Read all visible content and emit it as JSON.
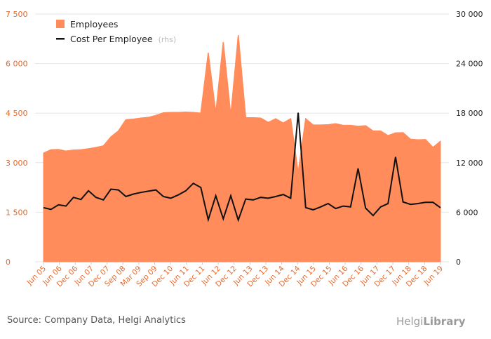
{
  "chart_data": {
    "type": "area",
    "x_labels": [
      "Jun 05",
      "Jun 06",
      "Dec 06",
      "Jun 07",
      "Dec 07",
      "Sep 08",
      "Mar 09",
      "Sep 09",
      "Dec 10",
      "Jun 11",
      "Dec 11",
      "Jun 12",
      "Dec 12",
      "Jun 13",
      "Dec 13",
      "Jun 14",
      "Dec 14",
      "Jun 15",
      "Dec 15",
      "Jun 16",
      "Dec 16",
      "Jun 17",
      "Dec 17",
      "Jun 18",
      "Dec 18",
      "Jun 19"
    ],
    "left_axis": {
      "ticks": [
        "0",
        "1 500",
        "3 000",
        "4 500",
        "6 000",
        "7 500"
      ],
      "min": 0,
      "max": 7500
    },
    "right_axis": {
      "ticks": [
        "0",
        "6 000",
        "12 000",
        "18 000",
        "24 000",
        "30 000"
      ],
      "min": 0,
      "max": 30000
    },
    "series": [
      {
        "name": "Employees",
        "type": "area",
        "axis": "left",
        "color": "#ff8c5a",
        "values": [
          3290,
          3390,
          3400,
          3350,
          3380,
          3390,
          3420,
          3460,
          3510,
          3780,
          3960,
          4300,
          4320,
          4350,
          4370,
          4430,
          4510,
          4520,
          4520,
          4530,
          4520,
          4500,
          6330,
          4500,
          6650,
          4430,
          6860,
          4360,
          4360,
          4350,
          4220,
          4330,
          4200,
          4330,
          2700,
          4330,
          4140,
          4140,
          4150,
          4180,
          4130,
          4130,
          4100,
          4120,
          3960,
          3960,
          3820,
          3900,
          3910,
          3710,
          3690,
          3700,
          3460,
          3650
        ]
      },
      {
        "name": "Cost Per Employee",
        "note": "(rhs)",
        "type": "line",
        "axis": "right",
        "color": "#111111",
        "values": [
          6550,
          6350,
          6900,
          6750,
          7800,
          7550,
          8600,
          7800,
          7500,
          8800,
          8700,
          7900,
          8200,
          8400,
          8550,
          8700,
          7900,
          7700,
          8100,
          8600,
          9500,
          9000,
          5100,
          8000,
          5200,
          8000,
          5050,
          7600,
          7500,
          7800,
          7700,
          7900,
          8150,
          7700,
          18050,
          6550,
          6300,
          6650,
          7050,
          6450,
          6750,
          6650,
          11300,
          6500,
          5600,
          6650,
          7050,
          12700,
          7250,
          6950,
          7050,
          7200,
          7200,
          6550
        ]
      }
    ],
    "legend": {
      "position": "top-left"
    }
  },
  "footer": {
    "source": "Source: Company Data, Helgi Analytics",
    "logo_left": "Helgi",
    "logo_right": "Library"
  }
}
